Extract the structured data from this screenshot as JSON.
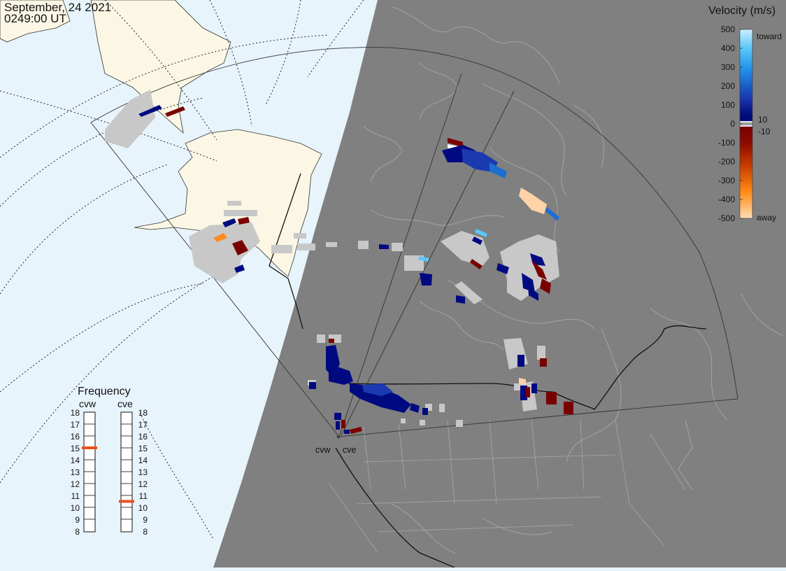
{
  "header": {
    "date": "September, 24 2021",
    "time": "0249:00 UT"
  },
  "colorbar": {
    "title": "Velocity (m/s)",
    "ticks": [
      "500",
      "400",
      "300",
      "200",
      "100",
      "0",
      "-100",
      "-200",
      "-300",
      "-400",
      "-500"
    ],
    "toward_label": "toward",
    "away_label": "away",
    "pos_threshold": "10",
    "neg_threshold": "-10"
  },
  "frequency_panel": {
    "title": "Frequency",
    "radars": [
      {
        "code": "cvw",
        "selected_mhz": 15
      },
      {
        "code": "cve",
        "selected_mhz": 10.5
      }
    ],
    "scale_mhz": [
      "18",
      "17",
      "16",
      "15",
      "14",
      "13",
      "12",
      "11",
      "10",
      "9",
      "8"
    ]
  },
  "map": {
    "sites": [
      {
        "code": "cvw"
      },
      {
        "code": "cve"
      }
    ],
    "colors": {
      "ocean": "#e8f4fc",
      "land_day": "#fbf7e4",
      "night": "#808080",
      "night_border": "#a0a0a0",
      "ground_scatter": "#c8c8c8",
      "fov_line": "#333333"
    }
  }
}
